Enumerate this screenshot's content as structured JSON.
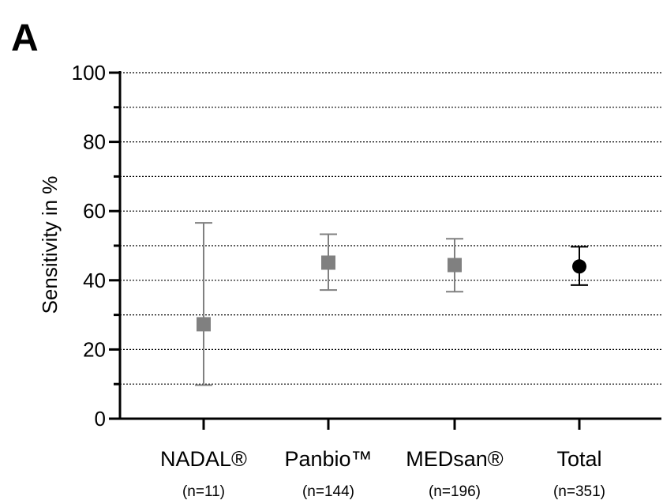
{
  "panel_label": "A",
  "chart_data": {
    "type": "scatter",
    "title": "",
    "xlabel": "",
    "ylabel": "Sensitivity in %",
    "ylim": [
      0,
      100
    ],
    "y_major_ticks": [
      0,
      20,
      40,
      60,
      80,
      100
    ],
    "y_minor_ticks": [
      10,
      30,
      50,
      70,
      90
    ],
    "grid": true,
    "categories": [
      {
        "label": "NADAL®",
        "n_label": "(n=11)",
        "value": 27.3,
        "ci_low": 9.7,
        "ci_high": 56.6,
        "marker": "square",
        "color": "#808080"
      },
      {
        "label": "Panbio™",
        "n_label": "(n=144)",
        "value": 45.1,
        "ci_low": 37.2,
        "ci_high": 53.3,
        "marker": "square",
        "color": "#808080"
      },
      {
        "label": "MEDsan®",
        "n_label": "(n=196)",
        "value": 44.4,
        "ci_low": 36.7,
        "ci_high": 52.0,
        "marker": "square",
        "color": "#808080"
      },
      {
        "label": "Total",
        "n_label": "(n=351)",
        "value": 44.0,
        "ci_low": 38.6,
        "ci_high": 49.7,
        "marker": "circle",
        "color": "#000000"
      }
    ]
  }
}
